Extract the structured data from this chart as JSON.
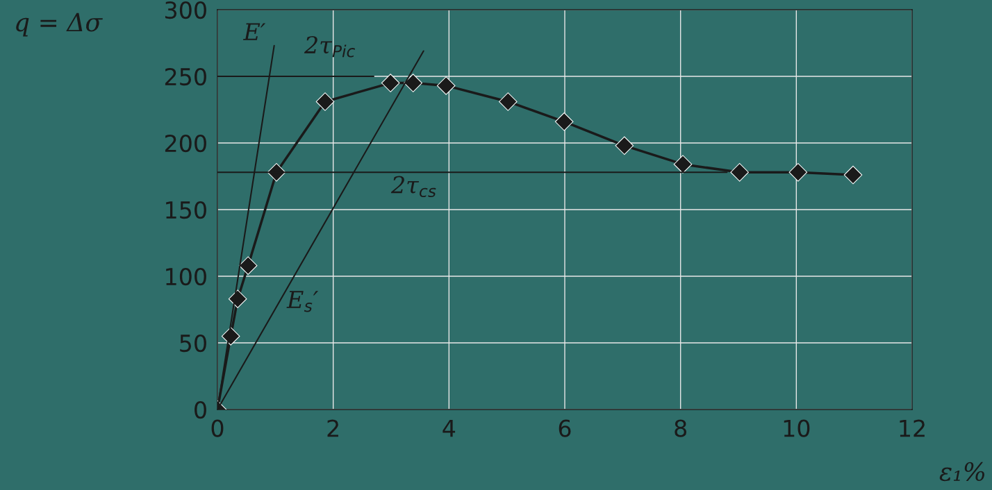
{
  "chart_data": {
    "type": "line",
    "xlabel": "ε₁%",
    "ylabel": "q = Δσ",
    "series": [
      {
        "color": "#1a1a1a",
        "marker": "diamond",
        "x": [
          0,
          0.23,
          0.35,
          0.53,
          1.02,
          1.86,
          2.99,
          3.38,
          3.95,
          5.02,
          5.99,
          7.03,
          8.04,
          9.02,
          10.03,
          10.98
        ],
        "values": [
          0,
          55,
          83,
          108,
          178,
          231,
          245,
          245,
          243,
          231,
          216,
          198,
          184,
          178,
          178,
          176
        ]
      },
      {
        "color": "#1a1a1a",
        "marker": "none",
        "x": [
          0,
          0.98
        ],
        "values": [
          0,
          273
        ]
      },
      {
        "color": "#1a1a1a",
        "marker": "none",
        "x": [
          0,
          3.56
        ],
        "values": [
          0,
          269
        ]
      },
      {
        "color": "#1a1a1a",
        "marker": "none",
        "x": [
          2.7,
          0
        ],
        "values": [
          250,
          250
        ]
      },
      {
        "color": "#1a1a1a",
        "marker": "none",
        "x": [
          8.8,
          0
        ],
        "values": [
          178,
          178
        ]
      }
    ],
    "annotations": [
      "E′",
      "2τ$_{Pic}$",
      "2τ$_{cs}$",
      "E$_{s}$′"
    ],
    "xlim": [
      0,
      12
    ],
    "ylim": [
      0,
      300
    ],
    "xticks": [
      0,
      2,
      4,
      6,
      8,
      10,
      12
    ],
    "yticks": [
      0,
      50,
      100,
      150,
      200,
      250,
      300
    ],
    "grid": true,
    "legend": false
  }
}
